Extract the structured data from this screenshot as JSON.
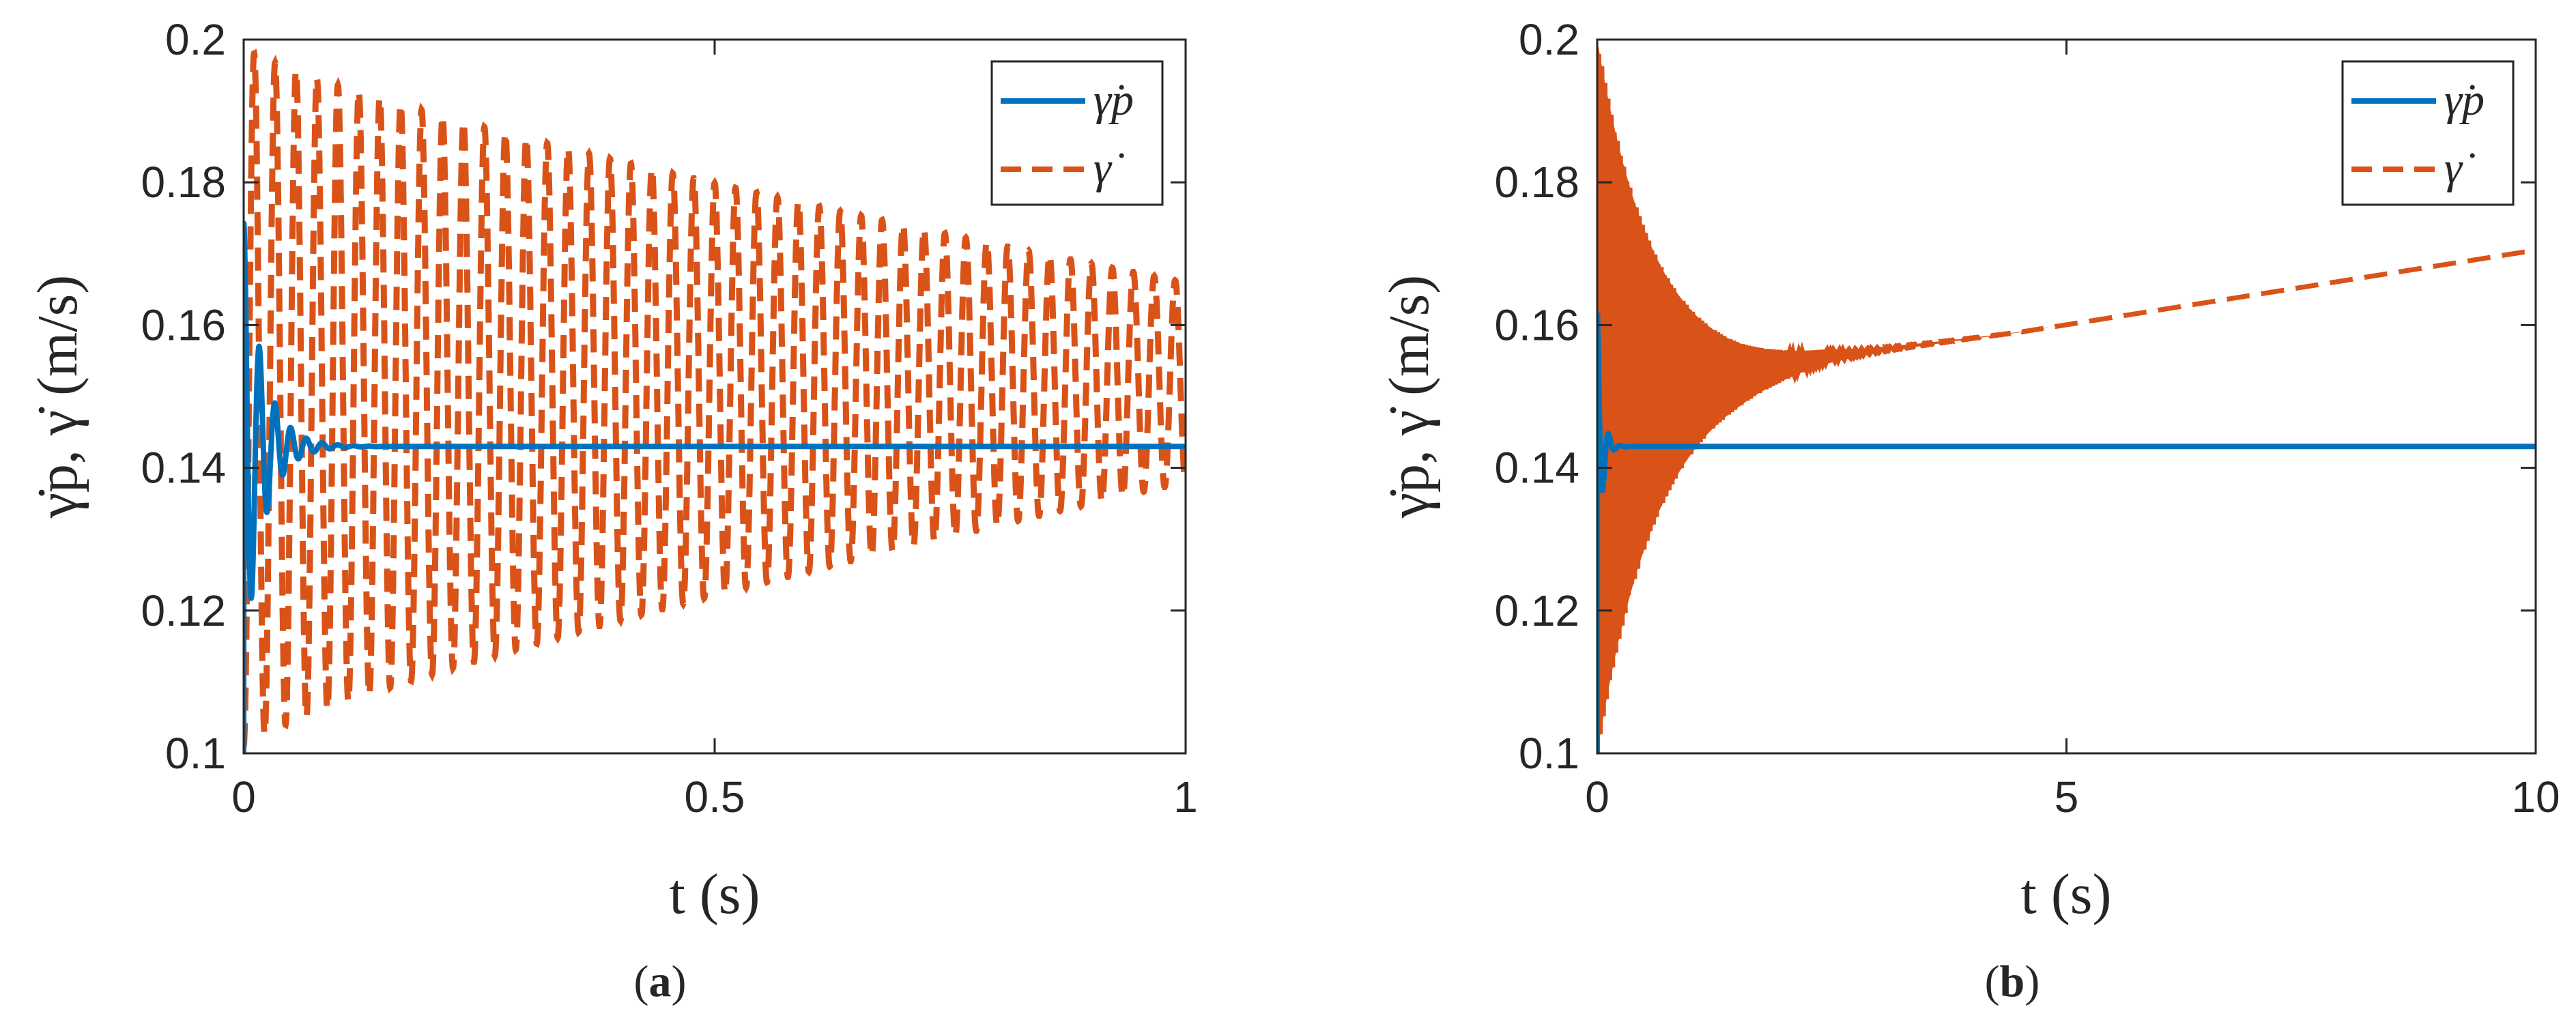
{
  "chart_data": [
    {
      "type": "line",
      "caption": {
        "open": "(",
        "letter": "a",
        "close": ")"
      },
      "xlabel": "t (s)",
      "ylabel": "γ̇p, γ̇ (m/s)",
      "xlim": [
        0,
        1
      ],
      "ylim": [
        0.1,
        0.2
      ],
      "xticks": [
        0,
        0.5,
        1
      ],
      "xtick_labels": [
        "0",
        "0.5",
        "1"
      ],
      "yticks": [
        0.1,
        0.12,
        0.14,
        0.16,
        0.18,
        0.2
      ],
      "ytick_labels": [
        "0.1",
        "0.12",
        "0.14",
        "0.16",
        "0.18",
        "0.2"
      ],
      "grid": false,
      "legend": {
        "position": "top-right",
        "entries": [
          "γ̇p",
          "γ̇"
        ]
      },
      "series": [
        {
          "name": "γ̇p",
          "style": "solid",
          "color": "#0072BD",
          "model": {
            "y_final": 0.143,
            "y0": 0.1,
            "amp0": 0.032,
            "decay": 50,
            "freq_hz": 60,
            "settle_x": 0.12
          }
        },
        {
          "name": "γ̇",
          "style": "dashed",
          "color": "#D95319",
          "model": {
            "y0": 0.1,
            "center_start": 0.15,
            "center_end": 0.152,
            "envelope_start": 0.049,
            "envelope_end": 0.014,
            "oscillation_periods": 45
          }
        }
      ]
    },
    {
      "type": "line",
      "caption": {
        "open": "(",
        "letter": "b",
        "close": ")"
      },
      "xlabel": "t (s)",
      "ylabel": "γ̇p, γ̇ (m/s)",
      "xlim": [
        0,
        10
      ],
      "ylim": [
        0.1,
        0.2
      ],
      "xticks": [
        0,
        5,
        10
      ],
      "xtick_labels": [
        "0",
        "5",
        "10"
      ],
      "yticks": [
        0.1,
        0.12,
        0.14,
        0.16,
        0.18,
        0.2
      ],
      "ytick_labels": [
        "0.1",
        "0.12",
        "0.14",
        "0.16",
        "0.18",
        "0.2"
      ],
      "grid": false,
      "legend": {
        "position": "top-right",
        "entries": [
          "γ̇p",
          "γ̇"
        ]
      },
      "series": [
        {
          "name": "γ̇p",
          "style": "solid",
          "color": "#0072BD",
          "model": {
            "y_final": 0.143,
            "y0": 0.1,
            "amp0": 0.02,
            "decay": 20,
            "freq_hz": 8,
            "settle_x": 0.3
          }
        },
        {
          "name": "γ̇",
          "style": "dashed",
          "color": "#D95319",
          "model": {
            "y0": 0.1,
            "drift": [
              [
                0,
                0.15
              ],
              [
                1.5,
                0.153
              ],
              [
                2.4,
                0.1555
              ],
              [
                3,
                0.1565
              ],
              [
                4.5,
                0.159
              ],
              [
                10,
                0.1705
              ]
            ],
            "envelope_start": 0.05,
            "envelope_decay": 1.6,
            "oscillation_freq": 30,
            "dense_until": 4.8
          }
        }
      ]
    }
  ]
}
